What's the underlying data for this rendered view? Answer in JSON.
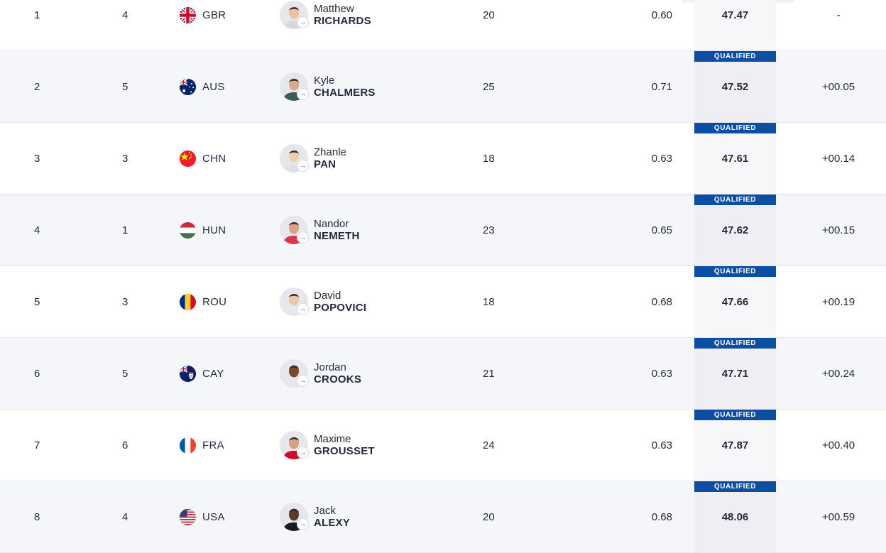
{
  "badge_label": "QUALIFIED",
  "rows": [
    {
      "rank": "1",
      "lane": "4",
      "noc": "GBR",
      "flag": "gbr-flag",
      "first": "Matthew",
      "last": "RICHARDS",
      "age": "20",
      "reaction": "0.60",
      "time": "47.47",
      "diff": "-",
      "qualified": true
    },
    {
      "rank": "2",
      "lane": "5",
      "noc": "AUS",
      "flag": "aus-flag",
      "first": "Kyle",
      "last": "CHALMERS",
      "age": "25",
      "reaction": "0.71",
      "time": "47.52",
      "diff": "+00.05",
      "qualified": true
    },
    {
      "rank": "3",
      "lane": "3",
      "noc": "CHN",
      "flag": "chn-flag",
      "first": "Zhanle",
      "last": "PAN",
      "age": "18",
      "reaction": "0.63",
      "time": "47.61",
      "diff": "+00.14",
      "qualified": true
    },
    {
      "rank": "4",
      "lane": "1",
      "noc": "HUN",
      "flag": "hun-flag",
      "first": "Nandor",
      "last": "NEMETH",
      "age": "23",
      "reaction": "0.65",
      "time": "47.62",
      "diff": "+00.15",
      "qualified": true
    },
    {
      "rank": "5",
      "lane": "3",
      "noc": "ROU",
      "flag": "rou-flag",
      "first": "David",
      "last": "POPOVICI",
      "age": "18",
      "reaction": "0.68",
      "time": "47.66",
      "diff": "+00.19",
      "qualified": true
    },
    {
      "rank": "6",
      "lane": "5",
      "noc": "CAY",
      "flag": "cay-flag",
      "first": "Jordan",
      "last": "CROOKS",
      "age": "21",
      "reaction": "0.63",
      "time": "47.71",
      "diff": "+00.24",
      "qualified": true
    },
    {
      "rank": "7",
      "lane": "6",
      "noc": "FRA",
      "flag": "fra-flag",
      "first": "Maxime",
      "last": "GROUSSET",
      "age": "24",
      "reaction": "0.63",
      "time": "47.87",
      "diff": "+00.40",
      "qualified": true
    },
    {
      "rank": "8",
      "lane": "4",
      "noc": "USA",
      "flag": "usa-flag",
      "first": "Jack",
      "last": "ALEXY",
      "age": "20",
      "reaction": "0.68",
      "time": "48.06",
      "diff": "+00.59",
      "qualified": true
    }
  ],
  "colors": {
    "badge": "#0b4ea2",
    "alt_row": "#f5f6fa",
    "text": "#262a3d",
    "divider": "#e5e6ec"
  }
}
